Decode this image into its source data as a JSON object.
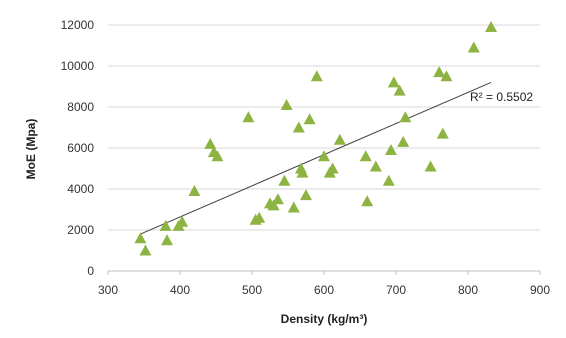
{
  "chart_data": {
    "type": "scatter",
    "title": "",
    "xlabel": "Density (kg/m³)",
    "ylabel": "MoE (Mpa)",
    "xlim": [
      300,
      900
    ],
    "ylim": [
      0,
      12000
    ],
    "x_ticks": [
      300,
      400,
      500,
      600,
      700,
      800,
      900
    ],
    "y_ticks": [
      0,
      2000,
      4000,
      6000,
      8000,
      10000,
      12000
    ],
    "grid": "horizontal",
    "marker": "triangle",
    "marker_color": "#8DB342",
    "trendline_color": "#404040",
    "series": [
      {
        "x": [
          345,
          352,
          380,
          382,
          398,
          403,
          420,
          442,
          447,
          452,
          495,
          505,
          510,
          525,
          530,
          536,
          545,
          548,
          558,
          565,
          568,
          570,
          575,
          580,
          590,
          600,
          608,
          612,
          622,
          658,
          660,
          672,
          690,
          693,
          697,
          705,
          710,
          713,
          748,
          760,
          765,
          770,
          808,
          832
        ],
        "y": [
          1600,
          1000,
          2200,
          1500,
          2200,
          2400,
          3900,
          6200,
          5800,
          5600,
          7500,
          2500,
          2600,
          3300,
          3200,
          3500,
          4400,
          8100,
          3100,
          7000,
          5000,
          4800,
          3700,
          7400,
          9500,
          5600,
          4800,
          5000,
          6400,
          5600,
          3400,
          5100,
          4400,
          5900,
          9200,
          8800,
          6300,
          7500,
          5100,
          9700,
          6700,
          9500,
          10900,
          11900
        ]
      }
    ],
    "trendline": {
      "x": [
        345,
        832
      ],
      "y": [
        1800,
        9200
      ]
    },
    "annotations": [
      "R² = 0.5502"
    ]
  }
}
